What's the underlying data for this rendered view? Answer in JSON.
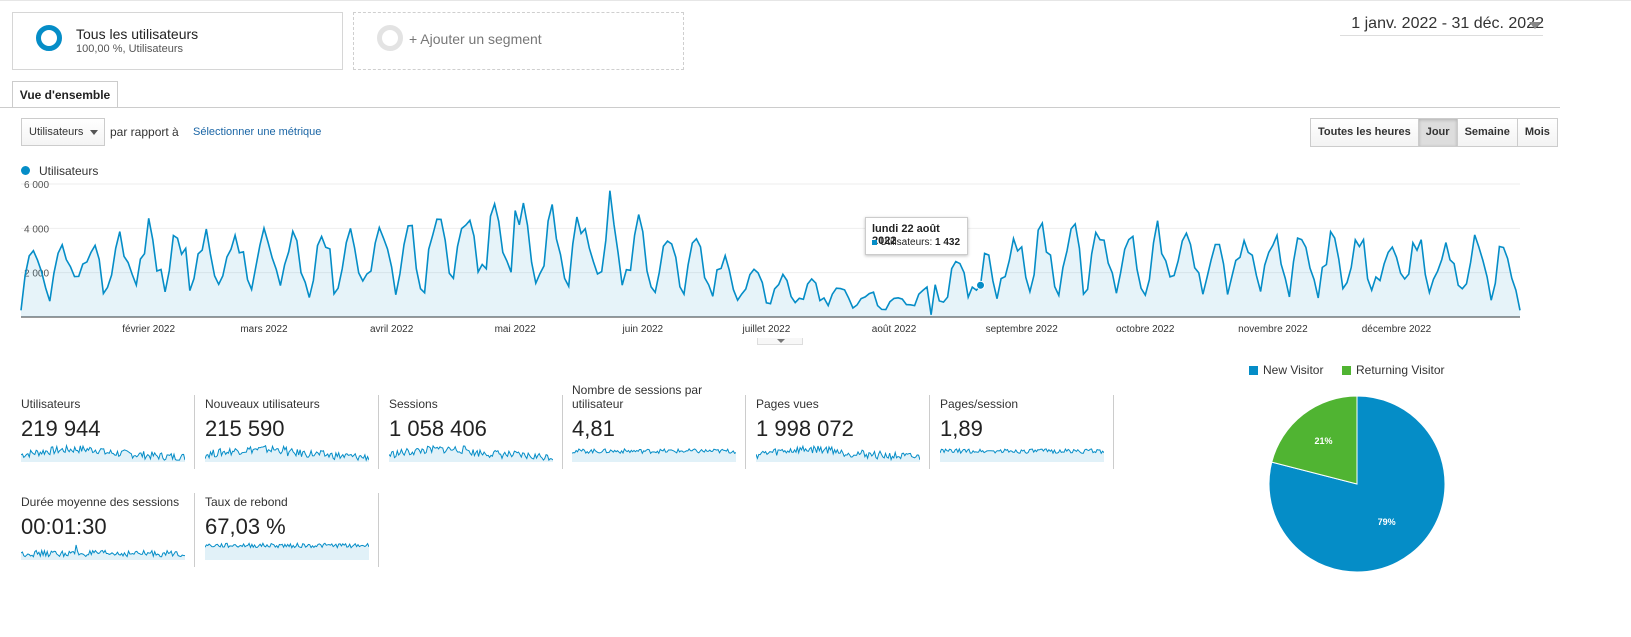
{
  "segments": {
    "active": {
      "title": "Tous les utilisateurs",
      "subtitle": "100,00 %, Utilisateurs"
    },
    "add_label": "+ Ajouter un segment"
  },
  "date_range": "1 janv. 2022 - 31 déc. 2022",
  "tabs": [
    {
      "label": "Vue d'ensemble"
    }
  ],
  "controls": {
    "metric_dropdown": "Utilisateurs",
    "compare_text": "par rapport à",
    "select_metric_link": "Sélectionner une métrique",
    "granularity": [
      {
        "label": "Toutes les heures",
        "active": false
      },
      {
        "label": "Jour",
        "active": true
      },
      {
        "label": "Semaine",
        "active": false
      },
      {
        "label": "Mois",
        "active": false
      }
    ]
  },
  "chart_legend": "Utilisateurs",
  "chart_data": [
    {
      "type": "area",
      "series": [
        {
          "name": "Utilisateurs",
          "color": "#058dc7"
        }
      ],
      "x_labels": [
        "février 2022",
        "mars 2022",
        "avril 2022",
        "mai 2022",
        "juin 2022",
        "juillet 2022",
        "août 2022",
        "septembre 2022",
        "octobre 2022",
        "novembre 2022",
        "décembre 2022"
      ],
      "y_ticks": [
        "2 000",
        "4 000",
        "6 000"
      ],
      "ylim": [
        0,
        6000
      ],
      "monthly_level": [
        1800,
        2700,
        2500,
        2800,
        3400,
        2800,
        1300,
        600,
        2700,
        2600,
        2400,
        2300,
        2200,
        900
      ],
      "weekly_amplitude": 0.45,
      "points": [
        {
          "x": "2022-01-01",
          "y": 300
        },
        {
          "x": "2022-05-01",
          "y": 4800
        },
        {
          "x": "2022-05-24",
          "y": 5700
        },
        {
          "x": "2022-08-10",
          "y": 100
        },
        {
          "x": "2022-08-22",
          "y": 1432
        },
        {
          "x": "2022-09-14",
          "y": 4200
        },
        {
          "x": "2022-12-31",
          "y": 300
        }
      ],
      "tooltip": {
        "date": "lundi 22 août 2022",
        "series_label": "Utilisateurs:",
        "value": "1 432"
      }
    },
    {
      "type": "pie",
      "slices": [
        {
          "label": "New Visitor",
          "value": 79,
          "display": "79%",
          "color": "#058dc7"
        },
        {
          "label": "Returning Visitor",
          "value": 21,
          "display": "21%",
          "color": "#50b432"
        }
      ],
      "legend_position": "top"
    }
  ],
  "metrics": [
    {
      "label": "Utilisateurs",
      "value": "219 944",
      "spark": "bumpy"
    },
    {
      "label": "Nouveaux utilisateurs",
      "value": "215 590",
      "spark": "bumpy"
    },
    {
      "label": "Sessions",
      "value": "1 058 406",
      "spark": "bumpy"
    },
    {
      "label": "Nombre de sessions par utilisateur",
      "value": "4,81",
      "spark": "flat"
    },
    {
      "label": "Pages vues",
      "value": "1 998 072",
      "spark": "bumpy"
    },
    {
      "label": "Pages/session",
      "value": "1,89",
      "spark": "flat"
    },
    {
      "label": "Durée moyenne des sessions",
      "value": "00:01:30",
      "spark": "bumpy-low"
    },
    {
      "label": "Taux de rebond",
      "value": "67,03 %",
      "spark": "flat-high"
    }
  ]
}
